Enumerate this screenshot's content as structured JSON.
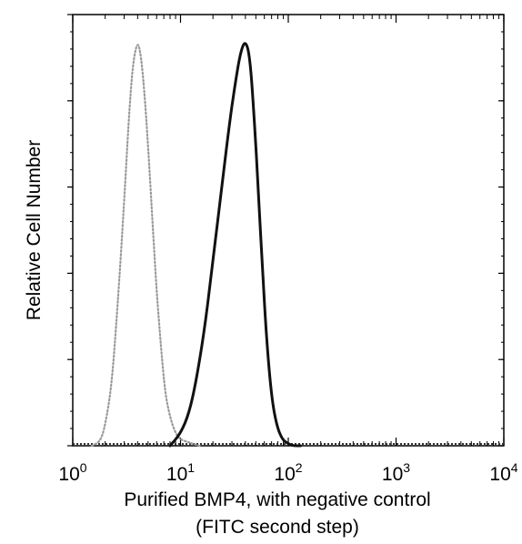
{
  "chart_data": {
    "type": "line",
    "ylabel": "Relative Cell Number",
    "xlabel_line1": "Purified BMP4, with negative control",
    "xlabel_line2": "(FITC second step)",
    "x_scale": "log",
    "xlim": [
      1,
      10000
    ],
    "ylim": [
      0,
      1
    ],
    "x_tick_labels": [
      {
        "base": "10",
        "exp": "0",
        "value": 1
      },
      {
        "base": "10",
        "exp": "1",
        "value": 10
      },
      {
        "base": "10",
        "exp": "2",
        "value": 100
      },
      {
        "base": "10",
        "exp": "3",
        "value": 1000
      },
      {
        "base": "10",
        "exp": "4",
        "value": 10000
      }
    ],
    "series": [
      {
        "role": "negative control",
        "style": "dotted",
        "color": "#9a9a9a",
        "x": [
          1.5,
          1.8,
          2.0,
          2.3,
          2.6,
          3.0,
          3.3,
          3.6,
          4.0,
          4.3,
          4.6,
          5.0,
          5.5,
          6.0,
          6.6,
          7.2,
          8.0,
          9.0,
          10.0,
          11.5,
          13.0,
          15.0
        ],
        "y": [
          0.0,
          0.01,
          0.05,
          0.15,
          0.34,
          0.6,
          0.8,
          0.94,
          1.0,
          0.96,
          0.88,
          0.74,
          0.55,
          0.38,
          0.24,
          0.13,
          0.07,
          0.03,
          0.015,
          0.01,
          0.005,
          0.0
        ]
      },
      {
        "role": "Purified BMP4",
        "style": "solid",
        "color": "#111111",
        "x": [
          8.0,
          10.0,
          12.0,
          14.0,
          17.0,
          20.0,
          24.0,
          28.0,
          32.0,
          36.0,
          40.0,
          44.0,
          48.0,
          53.0,
          58.0,
          63.0,
          70.0,
          78.0,
          88.0,
          100.0,
          110.0,
          130.0
        ],
        "y": [
          0.0,
          0.03,
          0.08,
          0.16,
          0.3,
          0.46,
          0.63,
          0.78,
          0.89,
          0.97,
          1.0,
          0.96,
          0.82,
          0.62,
          0.42,
          0.26,
          0.12,
          0.05,
          0.015,
          0.005,
          0.0,
          0.0
        ]
      }
    ],
    "grid": false,
    "legend": "none"
  }
}
